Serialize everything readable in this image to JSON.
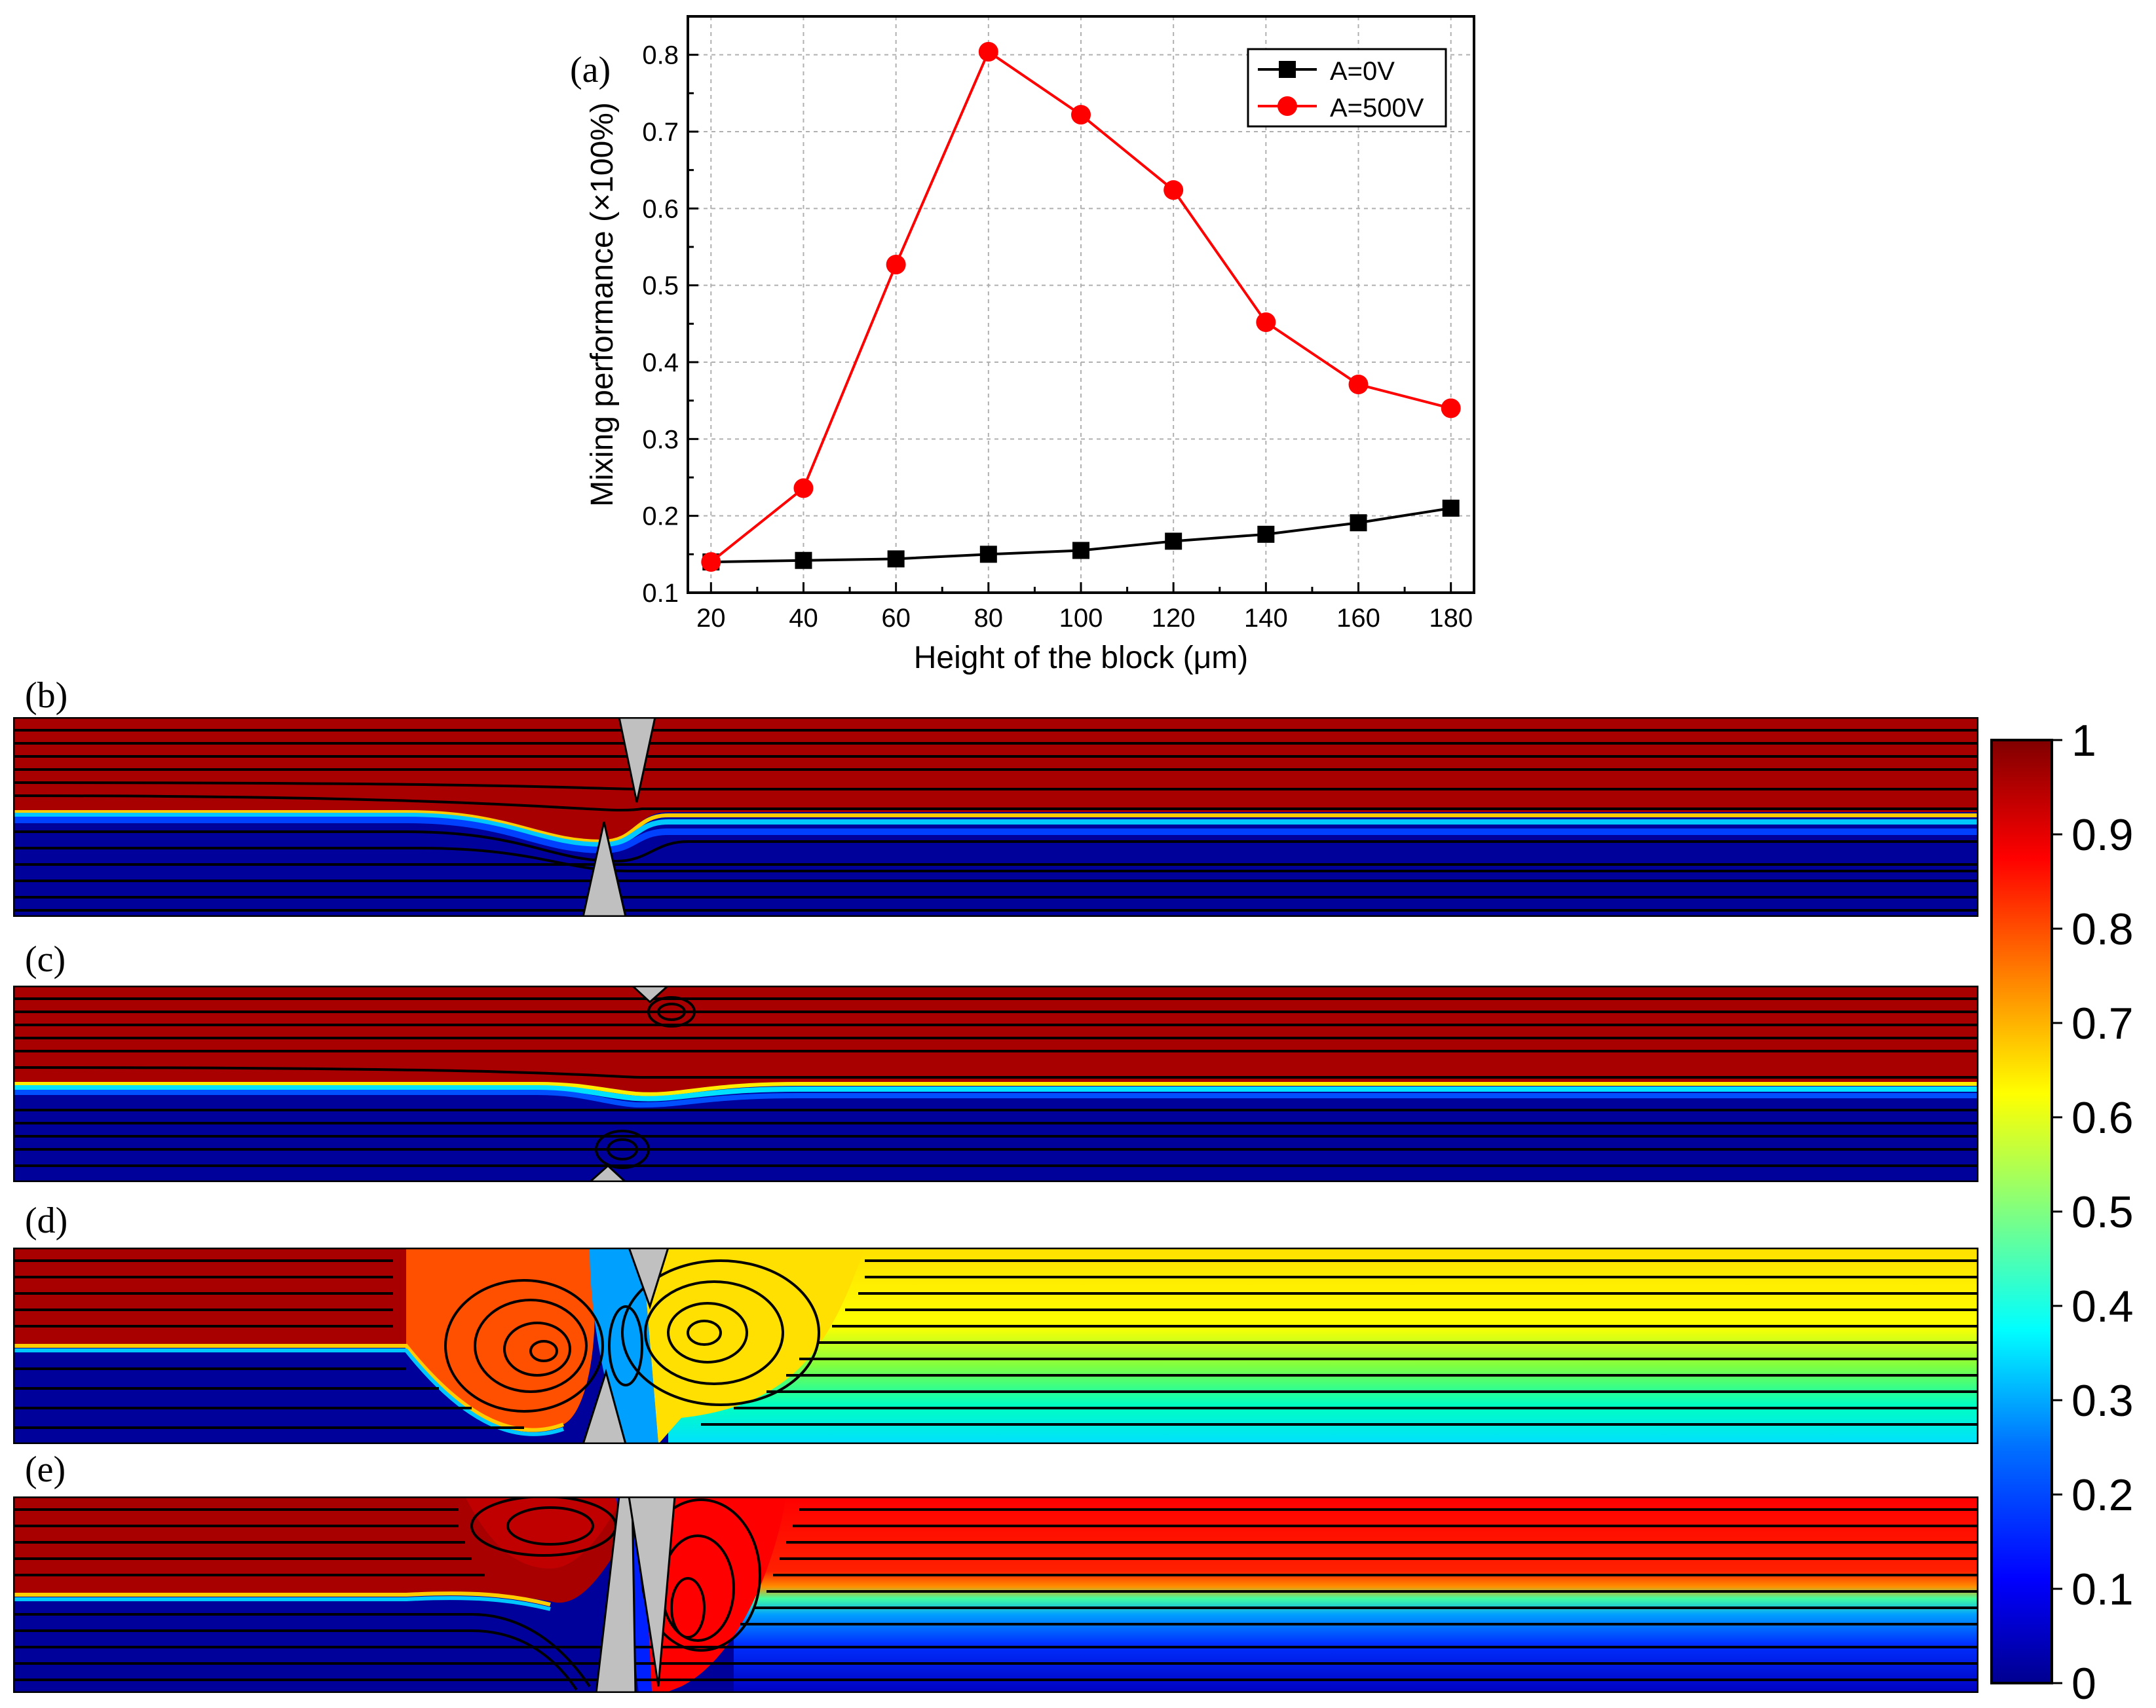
{
  "chart_data": {
    "type": "line",
    "panel_label": "(a)",
    "title": "",
    "xlabel": "Height of the block (μm)",
    "ylabel": "Mixing performance (×100%)",
    "xlim": [
      15,
      185
    ],
    "ylim": [
      0.1,
      0.85
    ],
    "x": [
      20,
      40,
      60,
      80,
      100,
      120,
      140,
      160,
      180
    ],
    "xticks": [
      "20",
      "40",
      "60",
      "80",
      "100",
      "120",
      "140",
      "160",
      "180"
    ],
    "yticks": [
      "0.1",
      "0.2",
      "0.3",
      "0.4",
      "0.5",
      "0.6",
      "0.7",
      "0.8"
    ],
    "grid": true,
    "legend_position": "top-right",
    "series": [
      {
        "name": "A=0V",
        "color": "#000000",
        "marker": "square",
        "values": [
          0.14,
          0.142,
          0.144,
          0.15,
          0.155,
          0.167,
          0.176,
          0.191,
          0.21
        ]
      },
      {
        "name": "A=500V",
        "color": "#ff0000",
        "marker": "circle",
        "values": [
          0.14,
          0.236,
          0.527,
          0.804,
          0.722,
          0.624,
          0.452,
          0.371,
          0.34
        ]
      }
    ]
  },
  "panels": {
    "b": {
      "label": "(b)"
    },
    "c": {
      "label": "(c)"
    },
    "d": {
      "label": "(d)"
    },
    "e": {
      "label": "(e)"
    }
  },
  "colorbar": {
    "ticks": [
      "0",
      "0.1",
      "0.2",
      "0.3",
      "0.4",
      "0.5",
      "0.6",
      "0.7",
      "0.8",
      "0.9",
      "1"
    ],
    "colors": [
      "#00008f",
      "#0000ff",
      "#00a0ff",
      "#00ffff",
      "#80ff80",
      "#ffff00",
      "#ff8000",
      "#ff0000",
      "#800000"
    ]
  }
}
